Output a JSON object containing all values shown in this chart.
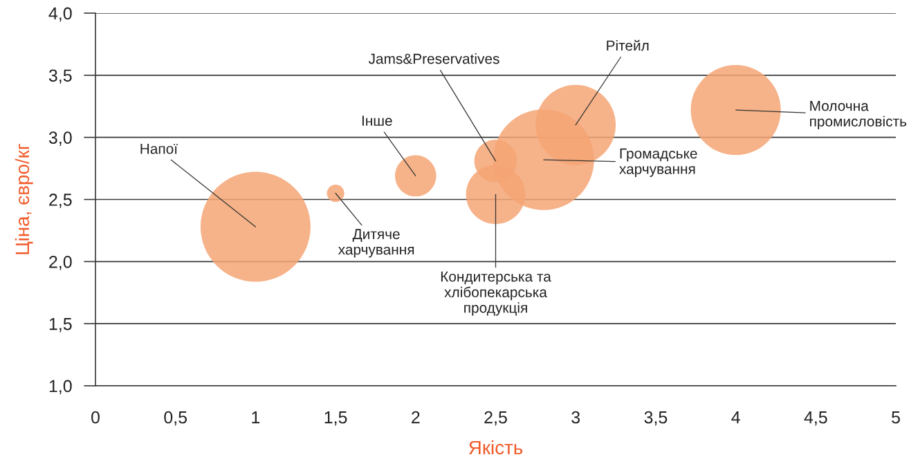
{
  "chart_data": {
    "type": "bubble",
    "xlabel": "Якість",
    "ylabel": "Ціна, євро/кг",
    "x": [
      1,
      1.5,
      2,
      2.5,
      2.5,
      2.8,
      3,
      4
    ],
    "values": [
      2.28,
      2.55,
      2.69,
      2.54,
      2.81,
      2.82,
      3.1,
      3.22
    ],
    "sizes": [
      1,
      0.025,
      0.14,
      0.29,
      0.15,
      0.84,
      0.53,
      0.67
    ],
    "color": "#f4a574",
    "xlim": [
      0,
      5
    ],
    "xticks": [
      0,
      {
        "value": 0.5,
        "label": "0,5"
      },
      1,
      {
        "value": 1.5,
        "label": "1,5"
      },
      2,
      {
        "value": 2.5,
        "label": "2,5"
      },
      3,
      {
        "value": 3.5,
        "label": "3,5"
      },
      4,
      {
        "value": 4.5,
        "label": "4,5"
      },
      5
    ],
    "ylim": [
      1,
      4
    ],
    "yticks": [
      {
        "value": 1,
        "label": "1,0"
      },
      {
        "value": 1.5,
        "label": "1,5"
      },
      {
        "value": 2,
        "label": "2,0"
      },
      {
        "value": 2.5,
        "label": "2,5"
      },
      {
        "value": 3,
        "label": "3,0"
      },
      {
        "value": 3.5,
        "label": "3,5"
      },
      {
        "value": 4,
        "label": "4,0"
      }
    ],
    "grid": "y",
    "annotations": [
      {
        "text": "Напої",
        "x": 1,
        "y": 2.28
      },
      {
        "text": "Дитяче\nхарчування",
        "x": 1.5,
        "y": 2.55
      },
      {
        "text": "Інше",
        "x": 2,
        "y": 2.69
      },
      {
        "text": "Кондитерська та\nхлібопекарська\nпродукція",
        "x": 2.5,
        "y": 2.54
      },
      {
        "text": "Jams&Preservatives",
        "x": 2.5,
        "y": 2.81
      },
      {
        "text": "Громадське\nхарчування",
        "x": 2.8,
        "y": 2.82
      },
      {
        "text": "Рітейл",
        "x": 3,
        "y": 3.1
      },
      {
        "text": "Молочна\nпромисловість",
        "x": 4,
        "y": 3.22
      }
    ]
  }
}
